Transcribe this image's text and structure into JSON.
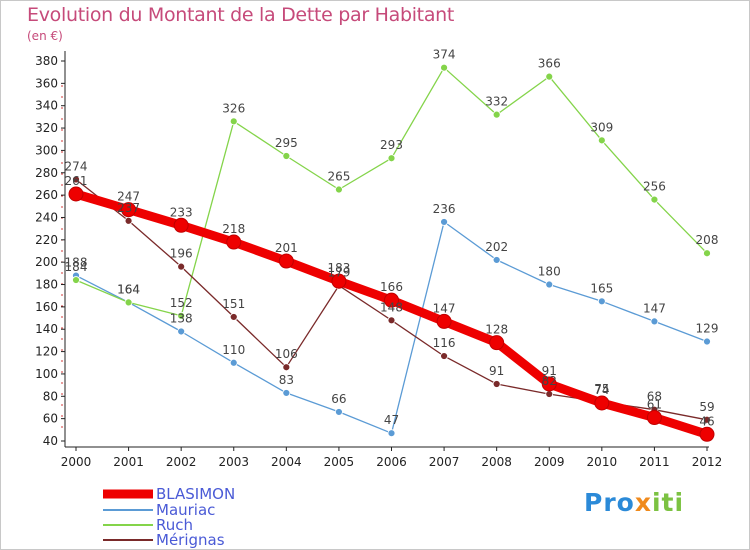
{
  "title": "Evolution du Montant de la Dette par Habitant",
  "subtitle": "(en €)",
  "logo": {
    "part1": "Pro",
    "part2": "x",
    "part3": "iti"
  },
  "chart_data": {
    "type": "line",
    "title": "Evolution du Montant de la Dette par Habitant",
    "ylabel": "(en €)",
    "xlabel": "",
    "grid": false,
    "legend_position": "bottom-left",
    "ylim": [
      40,
      380
    ],
    "yticks": [
      40,
      60,
      80,
      100,
      120,
      140,
      160,
      180,
      200,
      220,
      240,
      260,
      280,
      300,
      320,
      340,
      360,
      380
    ],
    "x": [
      "2000",
      "2001",
      "2002",
      "2003",
      "2004",
      "2005",
      "2006",
      "2007",
      "2008",
      "2009",
      "2010",
      "2011",
      "2012"
    ],
    "series": [
      {
        "name": "BLASIMON",
        "color": "#ee0000",
        "values": [
          261,
          247,
          233,
          218,
          201,
          183,
          166,
          147,
          128,
          91,
          74,
          61,
          46
        ]
      },
      {
        "name": "Mauriac",
        "color": "#5b9bd5",
        "values": [
          188,
          164,
          138,
          110,
          83,
          66,
          47,
          236,
          202,
          180,
          165,
          147,
          129
        ]
      },
      {
        "name": "Ruch",
        "color": "#84d44a",
        "values": [
          184,
          164,
          152,
          326,
          295,
          265,
          293,
          374,
          332,
          366,
          309,
          256,
          208
        ]
      },
      {
        "name": "Mérignas",
        "color": "#7a2a2a",
        "values": [
          274,
          237,
          196,
          151,
          106,
          179,
          148,
          116,
          91,
          82,
          75,
          68,
          59
        ]
      }
    ]
  }
}
